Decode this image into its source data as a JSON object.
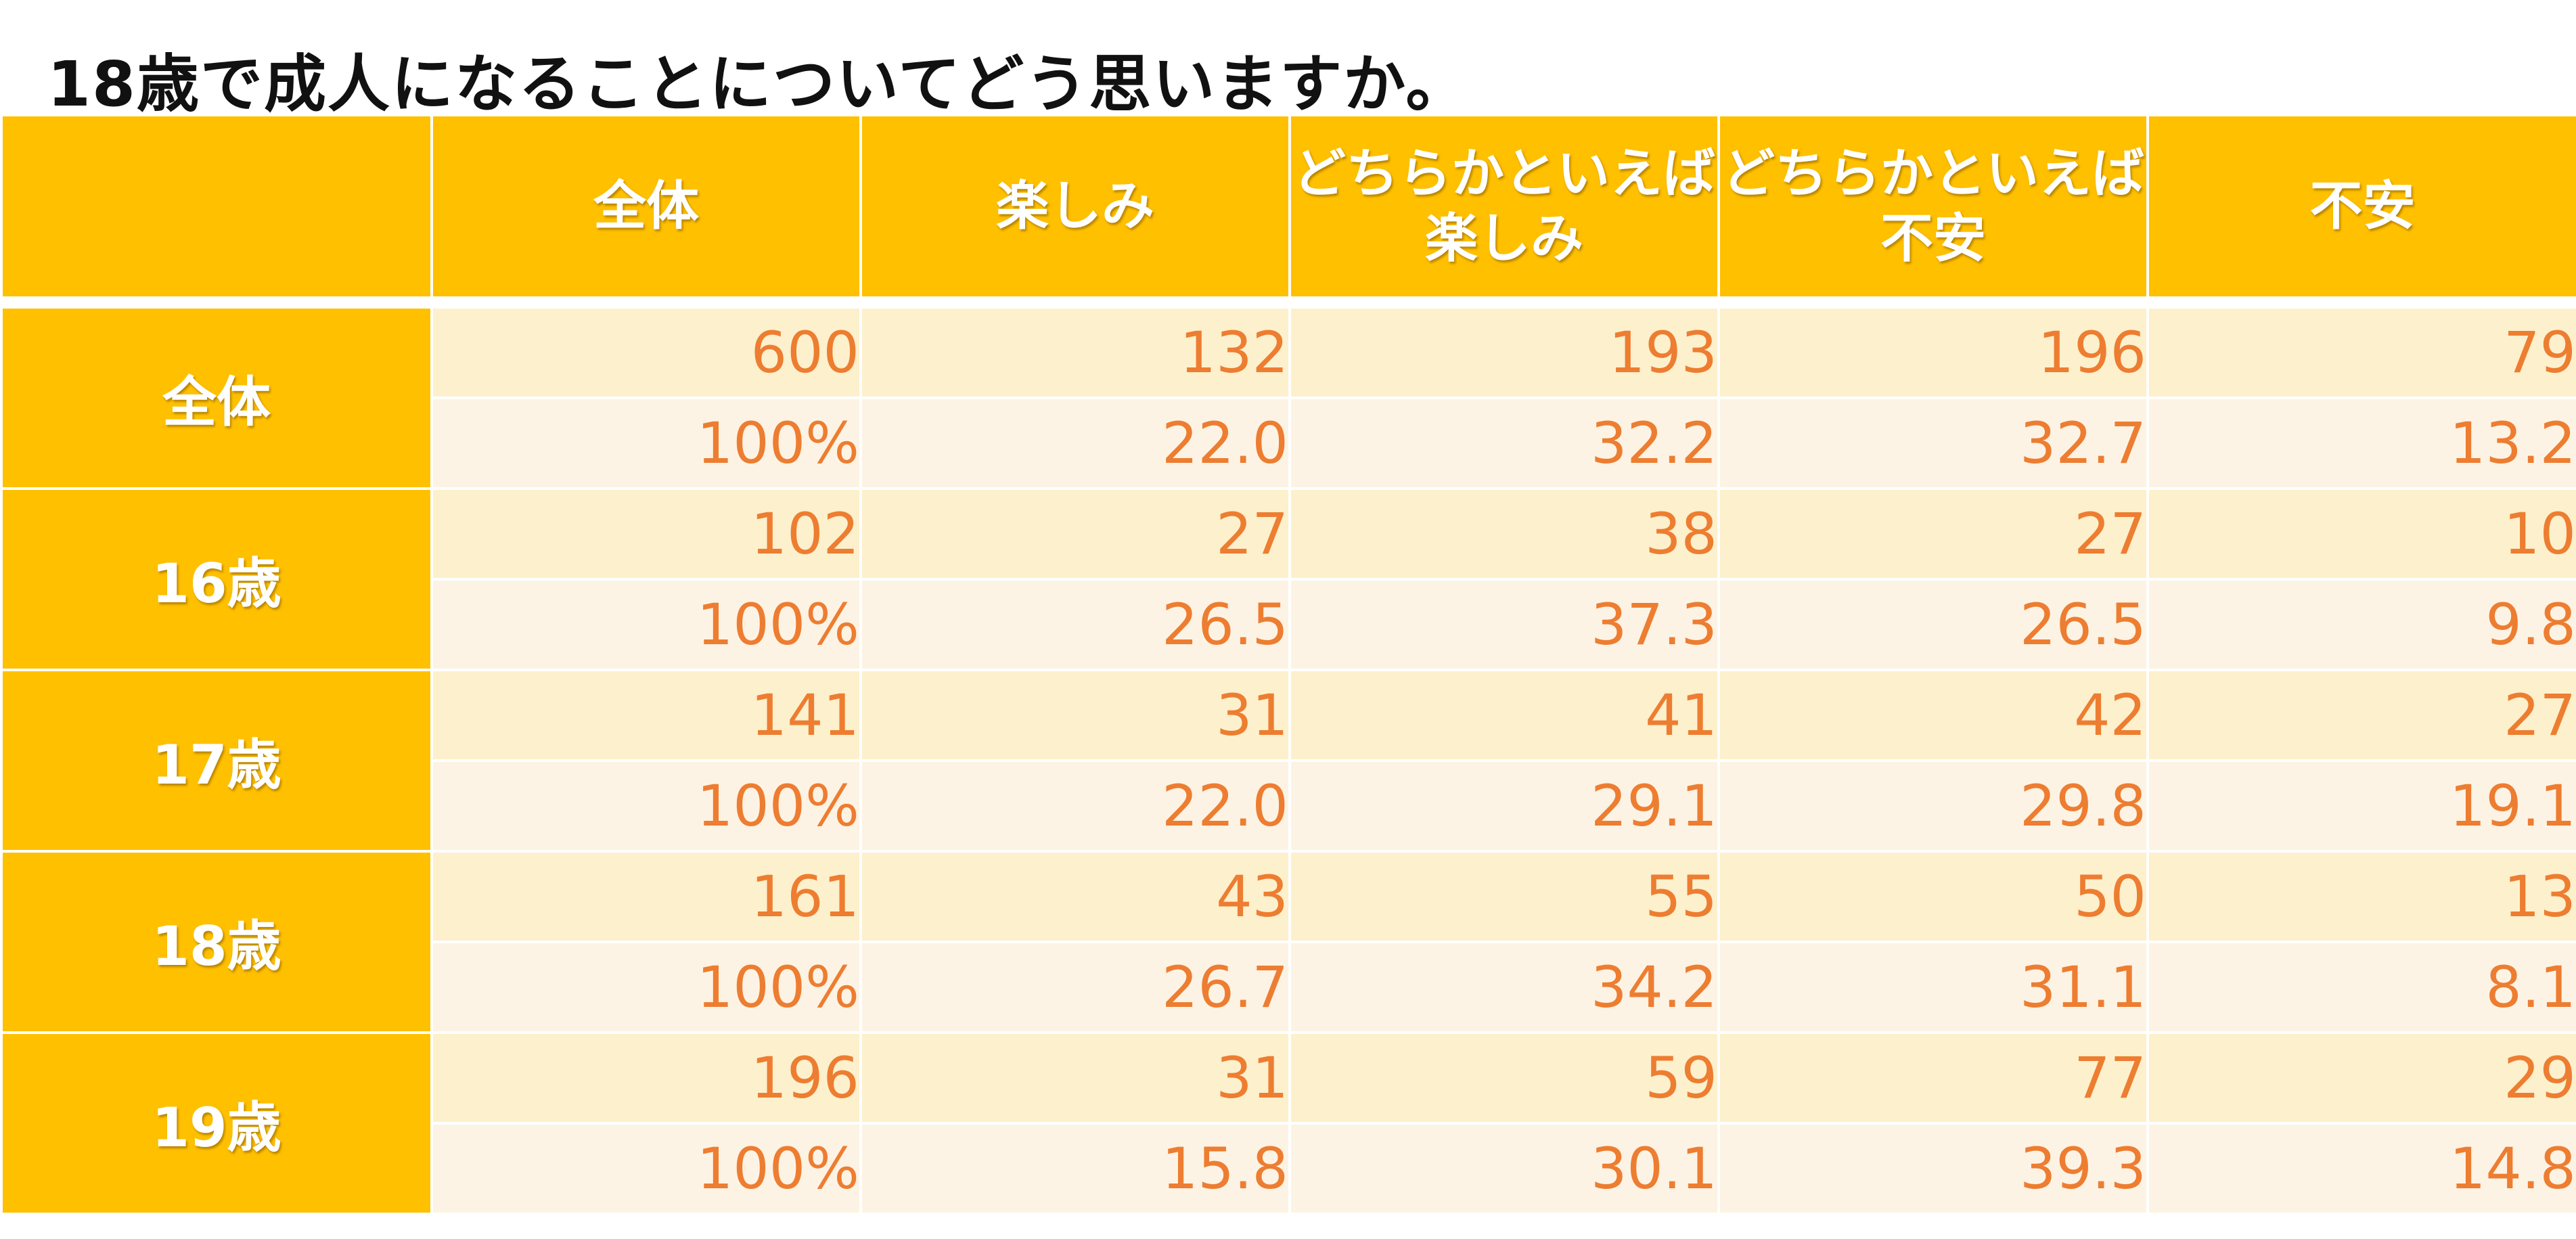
{
  "title": "18歳で成人になることについてどう思いますか。",
  "chart_data": {
    "type": "table",
    "title": "18歳で成人になることについてどう思いますか。",
    "columns": [
      {
        "line1": "",
        "line2": ""
      },
      {
        "line1": "全体",
        "line2": ""
      },
      {
        "line1": "楽しみ",
        "line2": ""
      },
      {
        "line1": "どちらかといえば",
        "line2": "楽しみ"
      },
      {
        "line1": "どちらかといえば",
        "line2": "不安"
      },
      {
        "line1": "不安",
        "line2": ""
      }
    ],
    "groups": [
      {
        "label": "全体",
        "counts": [
          "600",
          "132",
          "193",
          "196",
          "79"
        ],
        "percents": [
          "100%",
          "22.0",
          "32.2",
          "32.7",
          "13.2"
        ]
      },
      {
        "label": "16歳",
        "counts": [
          "102",
          "27",
          "38",
          "27",
          "10"
        ],
        "percents": [
          "100%",
          "26.5",
          "37.3",
          "26.5",
          "9.8"
        ]
      },
      {
        "label": "17歳",
        "counts": [
          "141",
          "31",
          "41",
          "42",
          "27"
        ],
        "percents": [
          "100%",
          "22.0",
          "29.1",
          "29.8",
          "19.1"
        ]
      },
      {
        "label": "18歳",
        "counts": [
          "161",
          "43",
          "55",
          "50",
          "13"
        ],
        "percents": [
          "100%",
          "26.7",
          "34.2",
          "31.1",
          "8.1"
        ]
      },
      {
        "label": "19歳",
        "counts": [
          "196",
          "31",
          "59",
          "77",
          "29"
        ],
        "percents": [
          "100%",
          "15.8",
          "30.1",
          "39.3",
          "14.8"
        ]
      }
    ]
  },
  "colors": {
    "header_bg": "#ffc000",
    "header_text": "#ffffff",
    "count_row_bg": "#fdf0cc",
    "percent_row_bg": "#fdf3e4",
    "value_text": "#ed7d31"
  }
}
